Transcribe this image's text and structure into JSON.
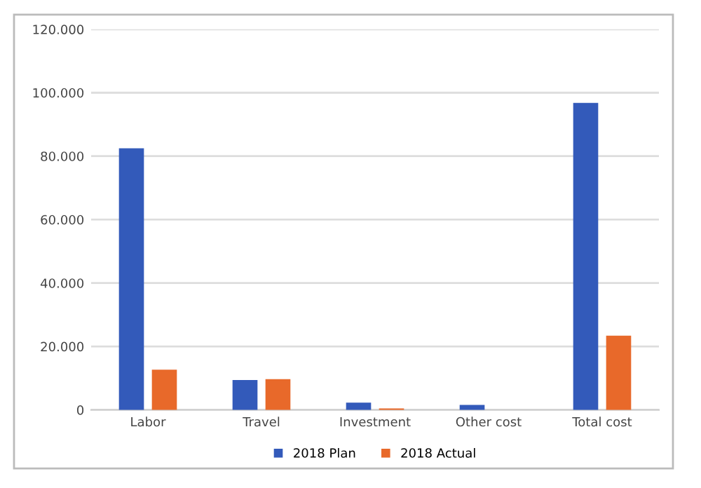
{
  "chart_data": {
    "type": "bar",
    "categories": [
      "Labor",
      "Travel",
      "Investment",
      "Other cost",
      "Total cost"
    ],
    "series": [
      {
        "name": "2018 Plan",
        "color": "#335aba",
        "values": [
          82500,
          9400,
          2300,
          1600,
          96800
        ]
      },
      {
        "name": "2018 Actual",
        "color": "#e8692a",
        "values": [
          12700,
          9700,
          500,
          0,
          23400
        ]
      }
    ],
    "ylim": [
      0,
      120000
    ],
    "yticks": [
      {
        "value": 0,
        "label": "0"
      },
      {
        "value": 20000,
        "label": "20.000"
      },
      {
        "value": 40000,
        "label": "40.000"
      },
      {
        "value": 60000,
        "label": "60.000"
      },
      {
        "value": 80000,
        "label": "80.000"
      },
      {
        "value": 100000,
        "label": "100.000"
      },
      {
        "value": 120000,
        "label": "120.000"
      }
    ],
    "grid": "y",
    "legend": "bottom"
  }
}
